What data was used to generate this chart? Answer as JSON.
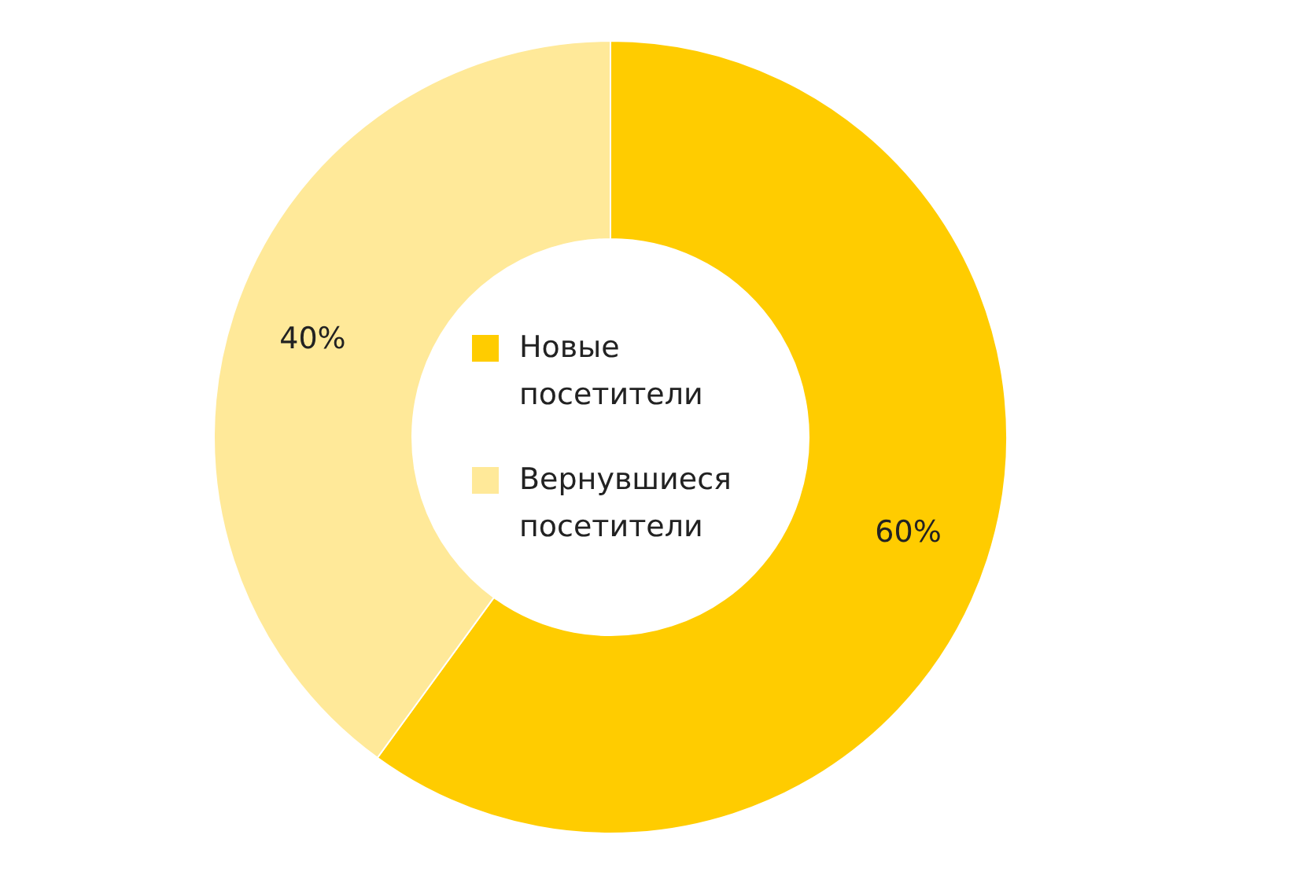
{
  "chart_data": {
    "type": "donut",
    "categories": [
      "Новые посетители",
      "Вернувшиеся посетители"
    ],
    "values": [
      60,
      40
    ],
    "colors": [
      "#ffcc00",
      "#ffe999"
    ],
    "value_labels": [
      "60%",
      "40%"
    ],
    "legend": "center"
  }
}
